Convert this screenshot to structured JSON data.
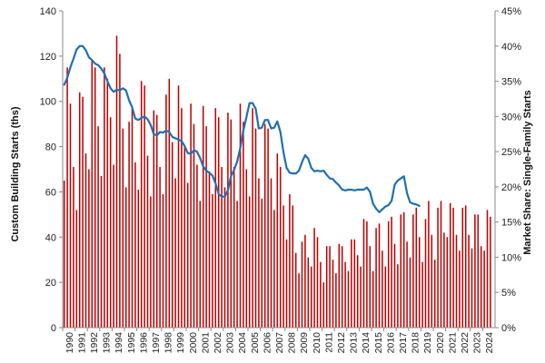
{
  "chart_data": {
    "type": "bar+line",
    "title": "",
    "ylabel_left": "Custom Building Starts (ths)",
    "ylabel_right": "Market Share: Single-Family Starts",
    "ylim_left": [
      0,
      140
    ],
    "ylim_right": [
      0,
      45
    ],
    "left_ticks": [
      "0",
      "20",
      "40",
      "60",
      "80",
      "100",
      "120",
      "140"
    ],
    "right_ticks": [
      "0%",
      "5%",
      "10%",
      "15%",
      "20%",
      "25%",
      "30%",
      "35%",
      "40%",
      "45%"
    ],
    "x_start_year": 1990,
    "x_end_year": 2024,
    "periods_per_year": 4,
    "x_tick_labels": [
      "1990",
      "1991",
      "1992",
      "1993",
      "1994",
      "1995",
      "1996",
      "1997",
      "1998",
      "1999",
      "2000",
      "2001",
      "2002",
      "2003",
      "2004",
      "2005",
      "2006",
      "2007",
      "2008",
      "2009",
      "2010",
      "2011",
      "2012",
      "2013",
      "2014",
      "2015",
      "2016",
      "2017",
      "2018",
      "2019",
      "2020",
      "2021",
      "2022",
      "2023",
      "2024"
    ],
    "grid": false,
    "legend": "none",
    "colors": {
      "bars": "#c00000",
      "line": "#1f6fb5",
      "axis": "#888888"
    },
    "series": [
      {
        "type": "bar",
        "axis": "left",
        "values": [
          65,
          115,
          99,
          71,
          52,
          104,
          102,
          77,
          70,
          118,
          115,
          89,
          67,
          115,
          110,
          93,
          72,
          129,
          121,
          88,
          62,
          91,
          97,
          73,
          61,
          109,
          107,
          76,
          58,
          96,
          94,
          71,
          59,
          103,
          110,
          82,
          66,
          107,
          97,
          80,
          64,
          99,
          90,
          72,
          56,
          98,
          89,
          69,
          59,
          97,
          93,
          71,
          62,
          95,
          92,
          71,
          56,
          99,
          91,
          70,
          58,
          97,
          88,
          66,
          57,
          90,
          88,
          66,
          52,
          77,
          71,
          54,
          39,
          59,
          54,
          33,
          24,
          38,
          41,
          31,
          27,
          44,
          40,
          29,
          20,
          36,
          36,
          30,
          24,
          37,
          36,
          29,
          25,
          39,
          39,
          32,
          27,
          48,
          47,
          36,
          25,
          44,
          46,
          34,
          27,
          47,
          49,
          37,
          28,
          50,
          51,
          38,
          31,
          50,
          53,
          40,
          29,
          48,
          56,
          41,
          30,
          53,
          56,
          42,
          40,
          55,
          53,
          41,
          34,
          53,
          54,
          41,
          35,
          50,
          50,
          36,
          34,
          52,
          49,
          0
        ]
      },
      {
        "type": "line",
        "axis": "right",
        "values": [
          34.5,
          35.5,
          37.0,
          38.2,
          39.5,
          40.0,
          40.0,
          39.4,
          38.4,
          38.0,
          37.5,
          37.3,
          36.8,
          36.1,
          35.0,
          34.0,
          33.5,
          33.8,
          33.7,
          34.0,
          33.7,
          32.3,
          31.3,
          29.7,
          29.5,
          29.8,
          30.0,
          29.6,
          28.8,
          27.5,
          27.3,
          27.8,
          27.7,
          28.0,
          27.8,
          27.1,
          26.9,
          26.7,
          26.5,
          25.8,
          24.8,
          24.7,
          25.2,
          25.0,
          24.1,
          22.9,
          22.3,
          22.0,
          21.6,
          20.5,
          19.0,
          18.6,
          18.6,
          19.5,
          21.5,
          22.4,
          23.6,
          25.5,
          28.0,
          29.9,
          31.9,
          31.9,
          31.1,
          28.3,
          28.4,
          29.5,
          29.5,
          28.3,
          28.4,
          29.3,
          27.8,
          24.9,
          22.7,
          22.0,
          21.9,
          21.9,
          22.3,
          23.5,
          24.5,
          24.0,
          22.7,
          22.2,
          22.3,
          22.2,
          22.3,
          21.7,
          21.2,
          21.1,
          20.6,
          20.2,
          19.6,
          19.5,
          19.6,
          19.6,
          19.5,
          19.6,
          19.6,
          19.6,
          19.9,
          19.3,
          17.6,
          16.9,
          16.4,
          16.8,
          17.2,
          17.4,
          18.0,
          20.3,
          20.9,
          21.2,
          21.5,
          19.1,
          17.8,
          17.6,
          17.5,
          17.3
        ]
      }
    ]
  }
}
